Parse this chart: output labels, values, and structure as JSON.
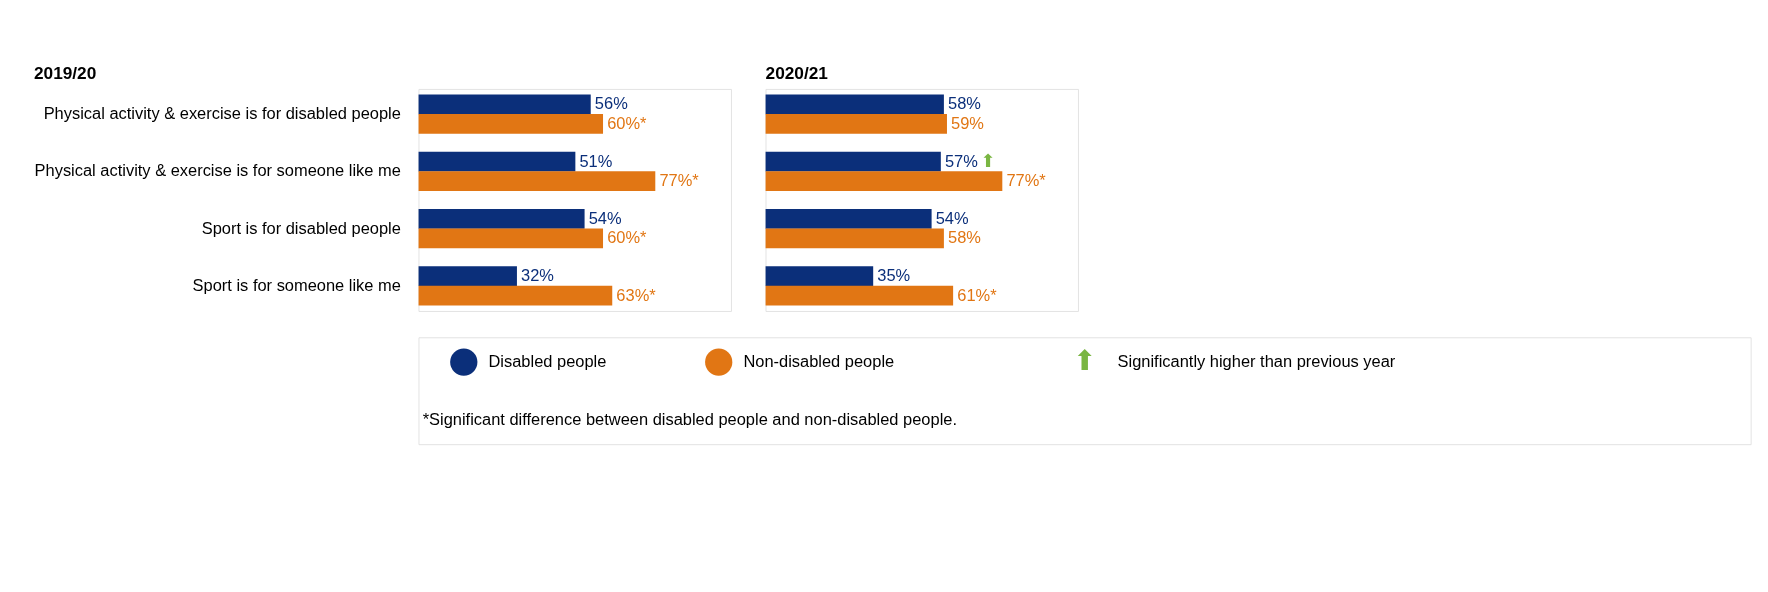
{
  "chart_data": [
    {
      "type": "bar",
      "orientation": "horizontal",
      "title": "2019/20",
      "legend": "bottom",
      "categories": [
        "Physical activity & exercise is for disabled people",
        "Physical activity & exercise is for someone like me",
        "Sport is for disabled people",
        "Sport is for someone like me"
      ],
      "series": [
        {
          "name": "Disabled people",
          "color": "#0b2f7a",
          "values": [
            56,
            51,
            54,
            32
          ],
          "value_labels": [
            "56%",
            "51%",
            "54%",
            "32%"
          ]
        },
        {
          "name": "Non-disabled people",
          "color": "#e17614",
          "values": [
            60,
            77,
            60,
            63
          ],
          "value_labels": [
            "60%*",
            "77%*",
            "60%*",
            "63%*"
          ]
        }
      ],
      "annotations": [
        "⬆",
        "Significantly higher than previous year",
        "*Significant difference between disabled people and non-disabled people."
      ]
    },
    {
      "type": "bar",
      "orientation": "horizontal",
      "title": "2020/21",
      "tick_labels": false,
      "categories": [
        "Physical activity & exercise is for disabled people",
        "Physical activity & exercise is for someone like me",
        "Sport is for disabled people",
        "Sport is for someone like me"
      ],
      "series": [
        {
          "color": "#0b2f7a",
          "values": [
            58,
            57,
            54,
            35
          ],
          "value_labels": [
            "58%",
            "57%",
            "54%",
            "35%"
          ]
        },
        {
          "color": "#e17614",
          "values": [
            59,
            77,
            58,
            61
          ],
          "value_labels": [
            "59%",
            "77%*",
            "58%",
            "61%*"
          ]
        }
      ],
      "annotations": [
        {
          "text": "⬆",
          "x": 57,
          "y": "Physical activity & exercise is for someone like me"
        }
      ]
    }
  ]
}
